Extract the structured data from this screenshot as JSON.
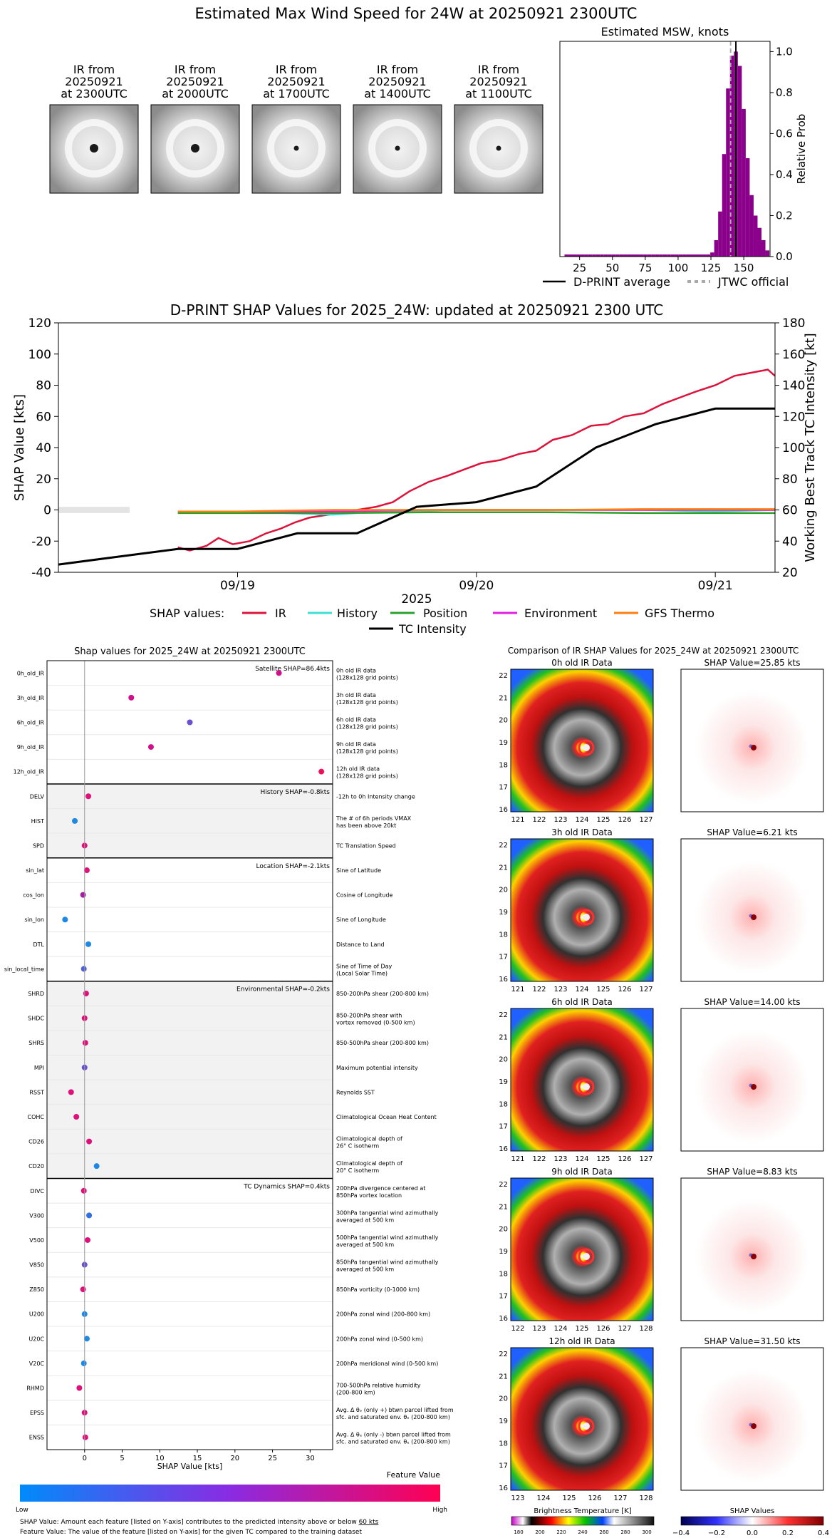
{
  "page_title": "Estimated Max Wind Speed for 24W at 20250921 2300UTC",
  "ir_thumbs": [
    {
      "l1": "IR from",
      "l2": "20250921",
      "l3": "at 2300UTC",
      "eye": "large"
    },
    {
      "l1": "IR from",
      "l2": "20250921",
      "l3": "at 2000UTC",
      "eye": "large"
    },
    {
      "l1": "IR from",
      "l2": "20250921",
      "l3": "at 1700UTC",
      "eye": "small"
    },
    {
      "l1": "IR from",
      "l2": "20250921",
      "l3": "at 1400UTC",
      "eye": "small"
    },
    {
      "l1": "IR from",
      "l2": "20250921",
      "l3": "at 1100UTC",
      "eye": "small"
    }
  ],
  "chart_data": [
    {
      "id": "msw",
      "type": "bar",
      "title": "Estimated MSW, knots",
      "ylabel": "Relative Prob",
      "xlim": [
        10,
        170
      ],
      "ylim": [
        0,
        1.05
      ],
      "xticks": [
        25,
        50,
        75,
        100,
        125,
        150
      ],
      "yticks": [
        "0.0",
        "0.2",
        "0.4",
        "0.6",
        "0.8",
        "1.0"
      ],
      "bin_width": 3,
      "bins_x": [
        15,
        18,
        21,
        24,
        27,
        30,
        33,
        36,
        39,
        42,
        45,
        48,
        51,
        54,
        57,
        60,
        63,
        66,
        69,
        72,
        75,
        78,
        81,
        84,
        87,
        90,
        93,
        96,
        99,
        102,
        105,
        108,
        111,
        114,
        117,
        120,
        123,
        126,
        129,
        132,
        135,
        138,
        141,
        144,
        147,
        150,
        153,
        156,
        159,
        162,
        165,
        168
      ],
      "bins_p": [
        0.01,
        0.01,
        0.01,
        0.01,
        0.01,
        0.01,
        0.01,
        0.01,
        0.01,
        0.01,
        0.01,
        0.01,
        0.01,
        0.01,
        0.01,
        0.01,
        0.01,
        0.01,
        0.01,
        0.01,
        0.01,
        0.01,
        0.01,
        0.01,
        0.01,
        0.01,
        0.01,
        0.01,
        0.01,
        0.01,
        0.01,
        0.01,
        0.01,
        0.01,
        0.01,
        0.01,
        0.01,
        0.02,
        0.08,
        0.22,
        0.5,
        0.82,
        0.98,
        1.0,
        0.93,
        0.72,
        0.48,
        0.3,
        0.2,
        0.14,
        0.08,
        0.03
      ],
      "dprint_average": 144,
      "jtwc_official": 140,
      "legend": [
        "D-PRINT average",
        "JTWC official"
      ]
    },
    {
      "id": "shap_ts",
      "type": "line",
      "title": "D-PRINT SHAP Values for 2025_24W: updated at 20250921 2300 UTC",
      "xlabel": "2025",
      "ylabel": "SHAP Value [kts]",
      "y2label": "Working Best Track TC Intensity [kt]",
      "xlim": [
        -0.25,
        2.75
      ],
      "ylim": [
        -40,
        120
      ],
      "y2lim": [
        20,
        180
      ],
      "yticks": [
        -40,
        -20,
        0,
        20,
        40,
        60,
        80,
        100,
        120
      ],
      "y2ticks": [
        20,
        40,
        60,
        80,
        100,
        120,
        140,
        160,
        180
      ],
      "xticks": [
        {
          "x": 0.5,
          "label": "09/19"
        },
        {
          "x": 1.5,
          "label": "09/20"
        },
        {
          "x": 2.5,
          "label": "09/21"
        }
      ],
      "shap_legend_label": "SHAP values:",
      "series": [
        {
          "name": "IR",
          "color": "#dc143c",
          "t": [
            0.25,
            0.3,
            0.37,
            0.42,
            0.48,
            0.55,
            0.62,
            0.68,
            0.74,
            0.8,
            0.88,
            0.95,
            1.0,
            1.08,
            1.15,
            1.22,
            1.3,
            1.38,
            1.45,
            1.52,
            1.6,
            1.68,
            1.75,
            1.82,
            1.9,
            1.98,
            2.05,
            2.12,
            2.2,
            2.28,
            2.35,
            2.42,
            2.5,
            2.58,
            2.65,
            2.72,
            2.75
          ],
          "v": [
            -24,
            -26,
            -23,
            -18,
            -22,
            -20,
            -15,
            -12,
            -8,
            -5,
            -3,
            -2,
            0,
            2,
            5,
            12,
            18,
            22,
            26,
            30,
            32,
            36,
            38,
            45,
            48,
            54,
            55,
            60,
            62,
            68,
            72,
            76,
            80,
            86,
            88,
            90,
            86
          ]
        },
        {
          "name": "History",
          "color": "#40e0d0",
          "t": [
            0.25,
            0.5,
            0.7,
            0.9,
            1.1,
            1.4,
            1.8,
            2.2,
            2.5,
            2.75
          ],
          "v": [
            -1,
            -1,
            -2,
            -3,
            -1,
            0,
            0,
            0,
            -1,
            0
          ]
        },
        {
          "name": "Position",
          "color": "#2ca02c",
          "t": [
            0.25,
            0.5,
            0.9,
            1.3,
            1.8,
            2.2,
            2.6,
            2.75
          ],
          "v": [
            -2,
            -2,
            -2,
            -1.5,
            -1.5,
            -2,
            -2,
            -2
          ]
        },
        {
          "name": "Environment",
          "color": "#e020e0",
          "t": [
            0.25,
            0.5,
            0.9,
            1.3,
            1.8,
            2.2,
            2.6,
            2.75
          ],
          "v": [
            -1,
            -1,
            -1,
            0,
            0,
            0,
            0,
            0
          ]
        },
        {
          "name": "GFS Thermo",
          "color": "#ff7f0e",
          "t": [
            0.25,
            0.5,
            0.9,
            1.3,
            1.8,
            2.2,
            2.6,
            2.75
          ],
          "v": [
            -1,
            -1,
            0,
            0,
            0,
            0.5,
            0.5,
            0.5
          ]
        }
      ],
      "intensity": {
        "name": "TC Intensity",
        "color": "#000000",
        "t": [
          -0.25,
          0.0,
          0.25,
          0.5,
          0.75,
          1.0,
          1.25,
          1.5,
          1.75,
          2.0,
          2.25,
          2.5,
          2.75
        ],
        "kt": [
          25,
          30,
          35,
          35,
          45,
          45,
          62,
          65,
          75,
          100,
          115,
          125,
          125
        ]
      }
    },
    {
      "id": "shap_features",
      "type": "scatter",
      "title": "Shap values for 2025_24W at 20250921 2300UTC",
      "xlabel": "SHAP Value [kts]",
      "xlim": [
        -5,
        33
      ],
      "xticks": [
        0,
        5,
        10,
        15,
        20,
        25,
        30
      ],
      "groups": [
        {
          "label": "Satellite SHAP=86.4kts",
          "shaded": false,
          "features": [
            {
              "name": "0h_old_IR",
              "value": 25.85,
              "desc1": "0h old IR data",
              "desc2": "(128x128 grid points)",
              "color": "#d0108a"
            },
            {
              "name": "3h_old_IR",
              "value": 6.21,
              "desc1": "3h old IR data",
              "desc2": "(128x128 grid points)",
              "color": "#d0108a"
            },
            {
              "name": "6h_old_IR",
              "value": 14.0,
              "desc1": "6h old IR data",
              "desc2": "(128x128 grid points)",
              "color": "#6a4fcf"
            },
            {
              "name": "9h_old_IR",
              "value": 8.83,
              "desc1": "9h old IR data",
              "desc2": "(128x128 grid points)",
              "color": "#d0108a"
            },
            {
              "name": "12h_old_IR",
              "value": 31.5,
              "desc1": "12h old IR data",
              "desc2": "(128x128 grid points)",
              "color": "#f0105a"
            }
          ]
        },
        {
          "label": "History SHAP=-0.8kts",
          "shaded": true,
          "features": [
            {
              "name": "DELV",
              "value": 0.5,
              "desc1": "-12h to 0h Intensity change",
              "desc2": "",
              "color": "#e0107a"
            },
            {
              "name": "HIST",
              "value": -1.3,
              "desc1": "The # of 6h periods VMAX",
              "desc2": "has been above 20kt",
              "color": "#1e88e5"
            },
            {
              "name": "SPD",
              "value": 0.0,
              "desc1": "TC Translation Speed",
              "desc2": "",
              "color": "#e0107a"
            }
          ]
        },
        {
          "label": "Location SHAP=-2.1kts",
          "shaded": false,
          "features": [
            {
              "name": "sin_lat",
              "value": 0.3,
              "desc1": "Sine of Latitude",
              "desc2": "",
              "color": "#e0107a"
            },
            {
              "name": "cos_lon",
              "value": -0.2,
              "desc1": "Cosine of Longitude",
              "desc2": "",
              "color": "#a020a0"
            },
            {
              "name": "sin_lon",
              "value": -2.6,
              "desc1": "Sine of Longitude",
              "desc2": "",
              "color": "#1e88e5"
            },
            {
              "name": "DTL",
              "value": 0.5,
              "desc1": "Distance to Land",
              "desc2": "",
              "color": "#1e88e5"
            },
            {
              "name": "sin_local_time",
              "value": -0.1,
              "desc1": "Sine of Time of Day",
              "desc2": "(Local Solar Time)",
              "color": "#5060d0"
            }
          ]
        },
        {
          "label": "Environmental SHAP=-0.2kts",
          "shaded": true,
          "features": [
            {
              "name": "SHRD",
              "value": 0.2,
              "desc1": "850-200hPa shear (200-800 km)",
              "desc2": "",
              "color": "#e0107a"
            },
            {
              "name": "SHDC",
              "value": 0.0,
              "desc1": "850-200hPa shear with",
              "desc2": "vortex removed (0-500 km)",
              "color": "#e0107a"
            },
            {
              "name": "SHRS",
              "value": 0.1,
              "desc1": "850-500hPa shear (200-800 km)",
              "desc2": "",
              "color": "#e0107a"
            },
            {
              "name": "MPI",
              "value": 0.0,
              "desc1": "Maximum potential intensity",
              "desc2": "",
              "color": "#6a4fcf"
            },
            {
              "name": "RSST",
              "value": -1.8,
              "desc1": "Reynolds SST",
              "desc2": "",
              "color": "#e0107a"
            },
            {
              "name": "COHC",
              "value": -1.1,
              "desc1": "Climatological Ocean Heat Content",
              "desc2": "",
              "color": "#e0107a"
            },
            {
              "name": "CD26",
              "value": 0.6,
              "desc1": "Climatological depth of",
              "desc2": "26° C isotherm",
              "color": "#e0107a"
            },
            {
              "name": "CD20",
              "value": 1.6,
              "desc1": "Climatological depth of",
              "desc2": "20° C isotherm",
              "color": "#1e88e5"
            }
          ]
        },
        {
          "label": "TC Dynamics SHAP=0.4kts",
          "shaded": false,
          "features": [
            {
              "name": "DIVC",
              "value": -0.1,
              "desc1": "200hPa divergence centered at",
              "desc2": "850hPa vortex location",
              "color": "#e0107a"
            },
            {
              "name": "V300",
              "value": 0.6,
              "desc1": "300hPa tangential wind azimuthally",
              "desc2": "averaged at 500 km",
              "color": "#3070e0"
            },
            {
              "name": "V500",
              "value": 0.4,
              "desc1": "500hPa tangential wind azimuthally",
              "desc2": "averaged at 500 km",
              "color": "#e0107a"
            },
            {
              "name": "V850",
              "value": 0.0,
              "desc1": "850hPa tangential wind azimuthally",
              "desc2": "averaged at 500 km",
              "color": "#6a4fcf"
            },
            {
              "name": "Z850",
              "value": -0.2,
              "desc1": "850hPa vorticity (0-1000 km)",
              "desc2": "",
              "color": "#e0107a"
            },
            {
              "name": "U200",
              "value": 0.0,
              "desc1": "200hPa zonal wind (200-800 km)",
              "desc2": "",
              "color": "#1e88e5"
            },
            {
              "name": "U20C",
              "value": 0.3,
              "desc1": "200hPa zonal wind (0-500 km)",
              "desc2": "",
              "color": "#1e88e5"
            },
            {
              "name": "V20C",
              "value": -0.1,
              "desc1": "200hPa meridional wind (0-500 km)",
              "desc2": "",
              "color": "#1e88e5"
            },
            {
              "name": "RHMD",
              "value": -0.7,
              "desc1": "700-500hPa relative humidity",
              "desc2": "(200-800 km)",
              "color": "#e0107a"
            },
            {
              "name": "EPSS",
              "value": 0.0,
              "desc1": "Avg. Δ θₑ (only +) btwn parcel lifted from",
              "desc2": "sfc. and saturated env. θₑ (200-800 km)",
              "color": "#e0107a"
            },
            {
              "name": "ENSS",
              "value": 0.1,
              "desc1": "Avg. Δ θₑ (only -) btwn parcel lifted from",
              "desc2": "sfc. and saturated env. θₑ (200-800 km)",
              "color": "#e0107a"
            }
          ]
        }
      ]
    },
    {
      "id": "ir_shap_compare",
      "type": "heatmap",
      "title": "Comparison of IR SHAP Values for 2025_24W at 20250921 2300UTC",
      "rows": [
        {
          "ir_title": "0h old IR Data",
          "shap_title": "SHAP Value=25.85 kts",
          "lon_ticks": [
            "121",
            "122",
            "123",
            "124",
            "125",
            "126",
            "127"
          ],
          "lat_ticks": [
            "16",
            "17",
            "18",
            "19",
            "20",
            "21",
            "22"
          ]
        },
        {
          "ir_title": "3h old IR Data",
          "shap_title": "SHAP Value=6.21 kts",
          "lon_ticks": [
            "121",
            "122",
            "123",
            "124",
            "125",
            "126",
            "127"
          ],
          "lat_ticks": [
            "16",
            "17",
            "18",
            "19",
            "20",
            "21",
            "22"
          ]
        },
        {
          "ir_title": "6h old IR Data",
          "shap_title": "SHAP Value=14.00 kts",
          "lon_ticks": [
            "121",
            "122",
            "123",
            "124",
            "125",
            "126",
            "127"
          ],
          "lat_ticks": [
            "16",
            "17",
            "18",
            "19",
            "20",
            "21",
            "22"
          ]
        },
        {
          "ir_title": "9h old IR Data",
          "shap_title": "SHAP Value=8.83 kts",
          "lon_ticks": [
            "122",
            "123",
            "124",
            "125",
            "126",
            "127",
            "128"
          ],
          "lat_ticks": [
            "16",
            "17",
            "18",
            "19",
            "20",
            "21",
            "22"
          ]
        },
        {
          "ir_title": "12h old IR Data",
          "shap_title": "SHAP Value=31.50 kts",
          "lon_ticks": [
            "123",
            "124",
            "125",
            "126",
            "127",
            "128"
          ],
          "lat_ticks": [
            "16",
            "17",
            "18",
            "19",
            "20",
            "21",
            "22"
          ]
        }
      ]
    }
  ],
  "feature_colorbar": {
    "title": "Feature Value",
    "low": "Low",
    "high": "High"
  },
  "footnotes": {
    "line1_a": "SHAP Value: Amount each feature [listed on Y-axis] contributes to the predicted intensity above or below ",
    "line1_b": "60 kts",
    "line2": "Feature Value: The value of the feature [listed on Y-axis] for the given TC compared to the training dataset"
  },
  "bt_colorbar": {
    "title": "Brightness Temperature [K]",
    "ticks": [
      "180",
      "200",
      "220",
      "240",
      "260",
      "280",
      "300"
    ]
  },
  "shap_colorbar": {
    "title": "SHAP Values",
    "ticks": [
      "−0.4",
      "−0.2",
      "0.0",
      "0.2",
      "0.4"
    ]
  }
}
